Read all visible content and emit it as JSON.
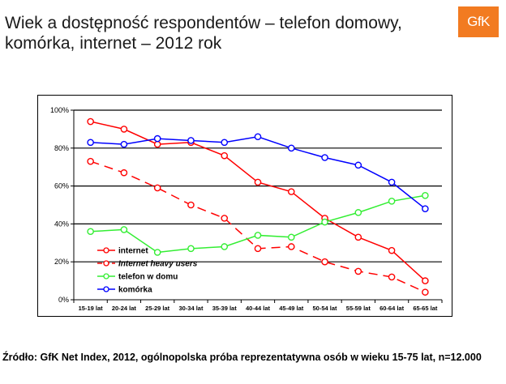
{
  "header": {
    "title": "Wiek a dostępność respondentów – telefon domowy, komórka, internet – 2012 rok",
    "logo_text": "GfK"
  },
  "source": {
    "text": "Źródło: GfK Net Index, 2012, ogólnopolska próba reprezentatywna osób w wieku 15-75 lat, n=12.000"
  },
  "colors": {
    "internet": "#ff0000",
    "internet_heavy": "#ff0000",
    "telefon": "#33ee33",
    "komorka": "#0000ff",
    "brand": "#f27b21"
  },
  "chart_data": {
    "type": "line",
    "title": "",
    "xlabel": "",
    "ylabel": "",
    "ylim": [
      0,
      100
    ],
    "yticks": [
      "0%",
      "20%",
      "40%",
      "60%",
      "80%",
      "100%"
    ],
    "grid": true,
    "legend_position": "bottom-left",
    "categories": [
      "15-19 lat",
      "20-24 lat",
      "25-29 lat",
      "30-34 lat",
      "35-39 lat",
      "40-44 lat",
      "45-49 lat",
      "50-54 lat",
      "55-59 lat",
      "60-64 lat",
      "65-65 lat"
    ],
    "series": [
      {
        "name": "internet",
        "style": "solid",
        "color": "#ff0000",
        "values": [
          94,
          90,
          82,
          83,
          76,
          62,
          57,
          43,
          33,
          26,
          10
        ]
      },
      {
        "name": "Internet heavy users",
        "style": "dashed",
        "color": "#ff0000",
        "values": [
          73,
          67,
          59,
          50,
          43,
          27,
          28,
          20,
          15,
          12,
          4
        ]
      },
      {
        "name": "telefon w domu",
        "style": "solid",
        "color": "#33ee33",
        "values": [
          36,
          37,
          25,
          27,
          28,
          34,
          33,
          41,
          46,
          52,
          55
        ]
      },
      {
        "name": "komórka",
        "style": "solid",
        "color": "#0000ff",
        "values": [
          83,
          82,
          85,
          84,
          83,
          86,
          80,
          75,
          71,
          62,
          48
        ]
      }
    ]
  }
}
